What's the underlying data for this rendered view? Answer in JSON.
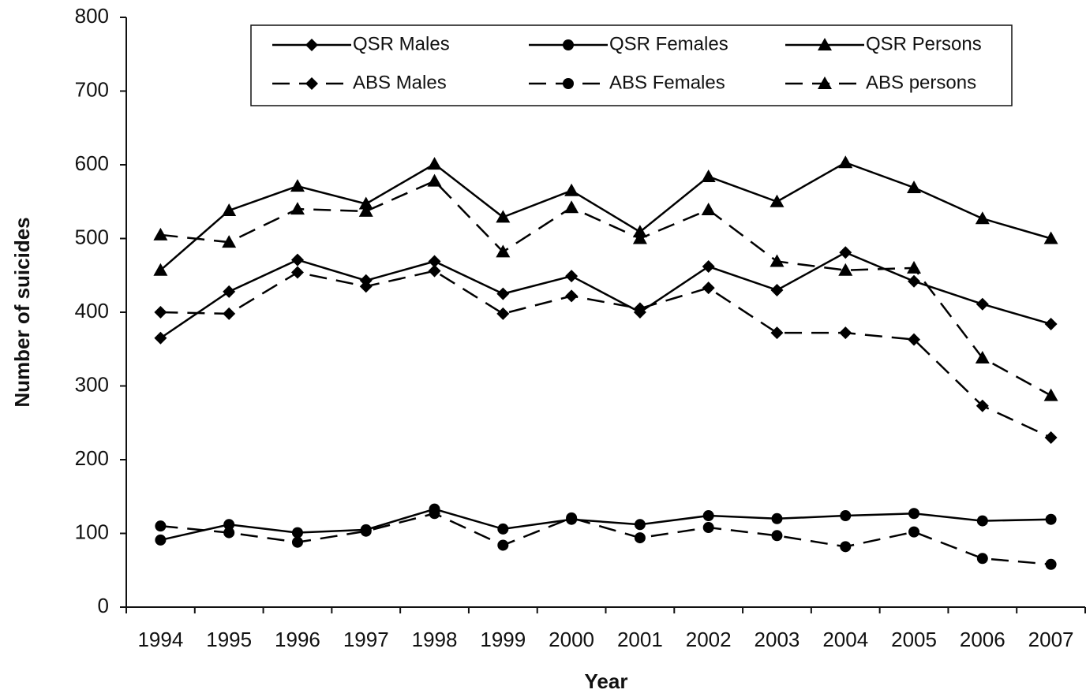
{
  "chart_data": {
    "type": "line",
    "x_label": "Year",
    "y_label": "Number of suicides",
    "categories": [
      "1994",
      "1995",
      "1996",
      "1997",
      "1998",
      "1999",
      "2000",
      "2001",
      "2002",
      "2003",
      "2004",
      "2005",
      "2006",
      "2007"
    ],
    "series": [
      {
        "name": "QSR Males",
        "color": "#000000",
        "marker": "diamond",
        "linestyle": "solid",
        "values": [
          365,
          428,
          471,
          443,
          469,
          425,
          449,
          400,
          462,
          430,
          481,
          442,
          411,
          384
        ]
      },
      {
        "name": "QSR Females",
        "color": "#000000",
        "marker": "circle",
        "linestyle": "solid",
        "values": [
          91,
          112,
          101,
          105,
          133,
          106,
          119,
          112,
          124,
          120,
          124,
          127,
          117,
          119
        ]
      },
      {
        "name": "QSR Persons",
        "color": "#000000",
        "marker": "triangle",
        "linestyle": "solid",
        "values": [
          457,
          538,
          571,
          547,
          601,
          529,
          565,
          509,
          584,
          550,
          603,
          569,
          527,
          500
        ]
      },
      {
        "name": "ABS Males",
        "color": "#000000",
        "marker": "diamond",
        "linestyle": "dashed",
        "values": [
          400,
          398,
          454,
          435,
          456,
          398,
          422,
          405,
          433,
          372,
          372,
          363,
          273,
          230
        ]
      },
      {
        "name": "ABS Females",
        "color": "#000000",
        "marker": "circle",
        "linestyle": "dashed",
        "values": [
          110,
          101,
          88,
          103,
          127,
          84,
          121,
          94,
          108,
          97,
          82,
          102,
          66,
          58
        ]
      },
      {
        "name": "ABS persons",
        "color": "#000000",
        "marker": "triangle",
        "linestyle": "dashed",
        "values": [
          505,
          495,
          540,
          537,
          578,
          482,
          542,
          500,
          539,
          469,
          457,
          460,
          338,
          287
        ]
      }
    ],
    "ylim": [
      0,
      800
    ],
    "yticks": [
      0,
      100,
      200,
      300,
      400,
      500,
      600,
      700,
      800
    ],
    "grid": false,
    "legend": "top"
  }
}
